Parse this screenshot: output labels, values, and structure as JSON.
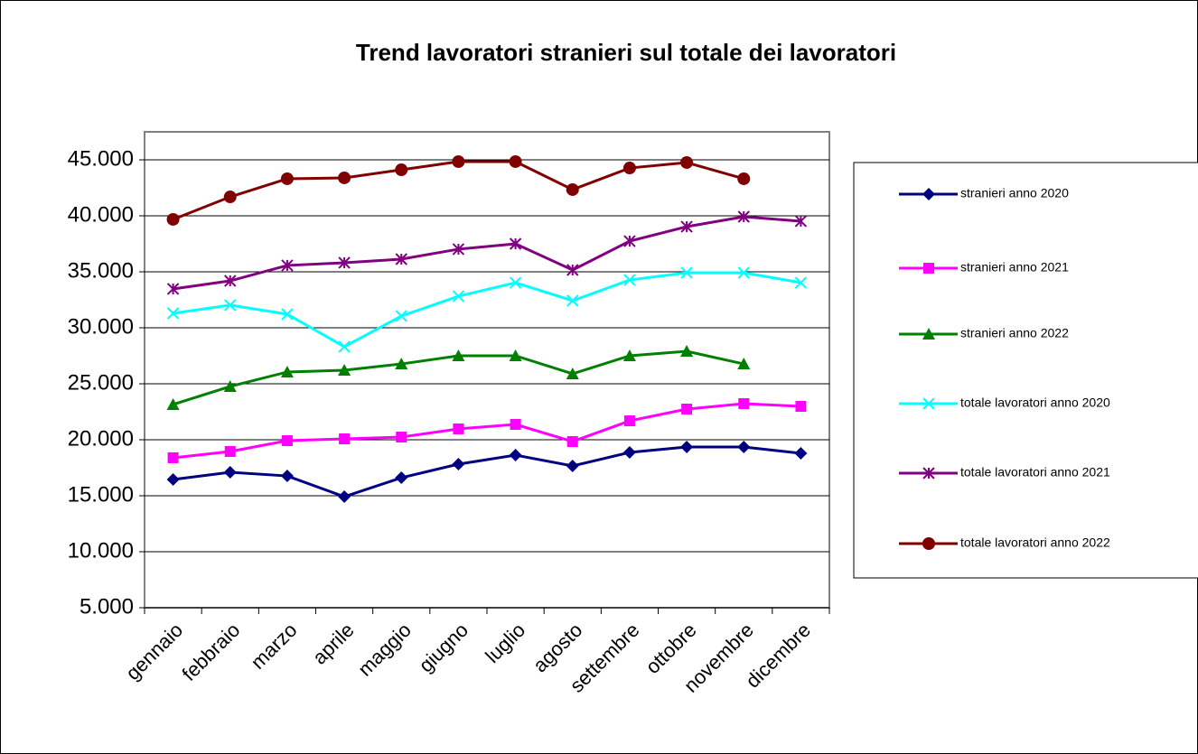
{
  "chart_data": {
    "type": "line",
    "title": "Trend lavoratori stranieri sul totale dei lavoratori",
    "categories": [
      "gennaio",
      "febbraio",
      "marzo",
      "aprile",
      "maggio",
      "giugno",
      "luglio",
      "agosto",
      "settembre",
      "ottobre",
      "novembre",
      "dicembre"
    ],
    "series": [
      {
        "name": "stranieri anno 2020",
        "color": "#000080",
        "marker": "diamond",
        "values": [
          16450,
          17100,
          16770,
          14920,
          16610,
          17820,
          18630,
          17660,
          18870,
          19350,
          19350,
          18790
        ]
      },
      {
        "name": "stranieri anno 2021",
        "color": "#ff00ff",
        "marker": "square",
        "values": [
          18390,
          18950,
          19920,
          20080,
          20240,
          20970,
          21370,
          19840,
          21690,
          22740,
          23230,
          22980
        ]
      },
      {
        "name": "stranieri anno 2022",
        "color": "#008000",
        "marker": "triangle",
        "values": [
          23150,
          24760,
          26050,
          26210,
          26770,
          27500,
          27500,
          25890,
          27500,
          27900,
          26770,
          null
        ]
      },
      {
        "name": "totale lavoratori anno 2020",
        "color": "#00ffff",
        "marker": "x",
        "values": [
          31290,
          32020,
          31210,
          28310,
          31050,
          32820,
          34030,
          32420,
          34270,
          34920,
          34920,
          34030
        ]
      },
      {
        "name": "totale lavoratori anno 2021",
        "color": "#800080",
        "marker": "star",
        "values": [
          33470,
          34190,
          35570,
          35810,
          36130,
          37020,
          37500,
          35160,
          37740,
          39030,
          39920,
          39520
        ]
      },
      {
        "name": "totale lavoratori anno 2022",
        "color": "#800000",
        "marker": "circle",
        "values": [
          39680,
          41690,
          43310,
          43390,
          44110,
          44840,
          44840,
          42340,
          44270,
          44760,
          43310,
          null
        ]
      }
    ],
    "ylim": [
      5000,
      47500
    ],
    "yticks": [
      {
        "value": 5000,
        "label": "5.000"
      },
      {
        "value": 10000,
        "label": "10.000"
      },
      {
        "value": 15000,
        "label": "15.000"
      },
      {
        "value": 20000,
        "label": "20.000"
      },
      {
        "value": 25000,
        "label": "25.000"
      },
      {
        "value": 30000,
        "label": "30.000"
      },
      {
        "value": 35000,
        "label": "35.000"
      },
      {
        "value": 40000,
        "label": "40.000"
      },
      {
        "value": 45000,
        "label": "45.000"
      }
    ],
    "grid": true,
    "legend": "right"
  }
}
